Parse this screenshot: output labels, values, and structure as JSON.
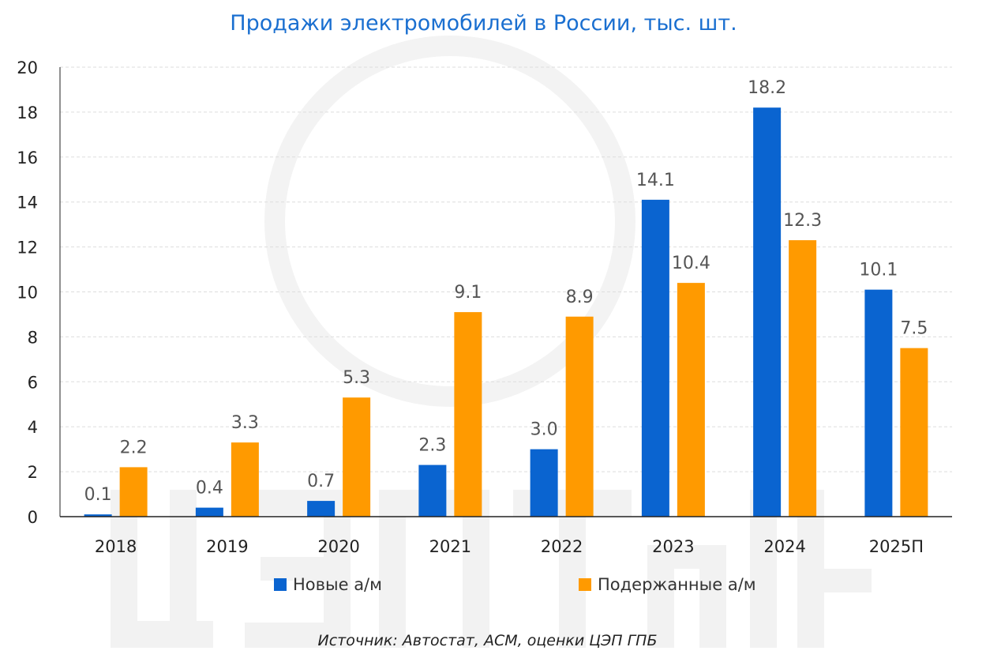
{
  "chart_data": {
    "type": "bar",
    "title": "Продажи электромобилей в России, тыс. шт.",
    "categories": [
      "2018",
      "2019",
      "2020",
      "2021",
      "2022",
      "2023",
      "2024",
      "2025П"
    ],
    "series": [
      {
        "name": "Новые а/м",
        "color": "#0a64d0",
        "values": [
          0.1,
          0.4,
          0.7,
          2.3,
          3.0,
          14.1,
          18.2,
          10.1
        ],
        "labels": [
          "0.1",
          "0.4",
          "0.7",
          "2.3",
          "3.0",
          "14.1",
          "18.2",
          "10.1"
        ]
      },
      {
        "name": "Подержанные а/м",
        "color": "#ff9a00",
        "values": [
          2.2,
          3.3,
          5.3,
          9.1,
          8.9,
          10.4,
          12.3,
          7.5
        ],
        "labels": [
          "2.2",
          "3.3",
          "5.3",
          "9.1",
          "8.9",
          "10.4",
          "12.3",
          "7.5"
        ]
      }
    ],
    "ylim": [
      0,
      20
    ],
    "yticks": [
      0,
      2,
      4,
      6,
      8,
      10,
      12,
      14,
      16,
      18,
      20
    ],
    "xlabel": "",
    "ylabel": "",
    "grid": true,
    "legend": "bottom",
    "source": "Источник: Автостат, АСМ, оценки ЦЭП ГПБ"
  },
  "watermark": "ЦЭП Talks"
}
